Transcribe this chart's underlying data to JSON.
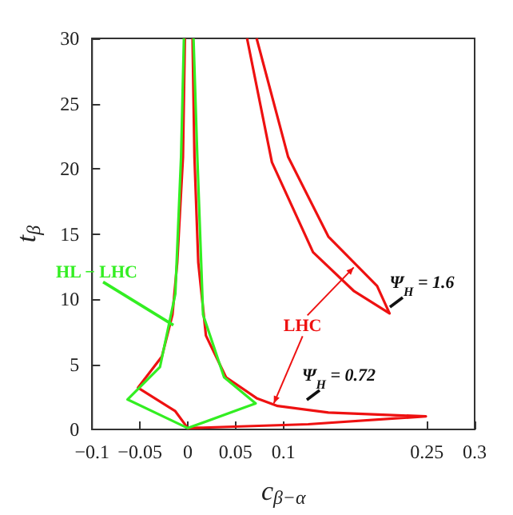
{
  "chart_data": {
    "type": "line",
    "xlabel": "c$_{β−α}$",
    "ylabel": "t$_{β}$",
    "xlim": [
      -0.1,
      0.3
    ],
    "xticks": [
      -0.1,
      -0.05,
      0,
      0.05,
      0.1,
      0.25,
      0.3
    ],
    "ylim": [
      0,
      30
    ],
    "yticks": [
      0,
      5,
      10,
      15,
      20,
      25,
      30
    ],
    "grid": false,
    "marker": "none",
    "line_style": "solid",
    "series": [
      {
        "color": "#ee1111",
        "x": [
          -0.003,
          -0.005,
          -0.011,
          -0.016,
          -0.027,
          -0.052,
          -0.013,
          0,
          0.126,
          0.249,
          0.147,
          0.094,
          0.072,
          0.04,
          0.019,
          0.011,
          0.007,
          0.005
        ],
        "values": [
          30,
          20.9,
          12.8,
          8.8,
          5.6,
          3.2,
          1.4,
          0.1,
          0.4,
          1.0,
          1.3,
          1.8,
          2.4,
          4.0,
          7.2,
          12.8,
          20.9,
          30
        ]
      },
      {
        "color": "#ee1111",
        "x": [
          0.072,
          0.105,
          0.147,
          0.198,
          0.211,
          0.174,
          0.131,
          0.088,
          0.062
        ],
        "values": [
          30,
          20.9,
          14.8,
          11.0,
          8.9,
          10.6,
          13.6,
          20.5,
          30
        ]
      },
      {
        "color": "#33ee22",
        "x": [
          -0.004,
          -0.007,
          -0.013,
          -0.029,
          -0.063,
          0,
          0.071,
          0.038,
          0.016,
          0.01,
          0.006
        ],
        "values": [
          30,
          20.9,
          10.4,
          4.8,
          2.3,
          0.1,
          2.0,
          4.0,
          8.8,
          20.9,
          30
        ]
      }
    ],
    "annotations": [
      {
        "text": "HL − LHC",
        "x": -0.015,
        "y": 8
      },
      {
        "text": "LHC",
        "x": 0.09,
        "y": 2
      },
      "Ψ$_{H}$ = 1.6",
      "Ψ$_{H}$ = 0.72"
    ]
  }
}
